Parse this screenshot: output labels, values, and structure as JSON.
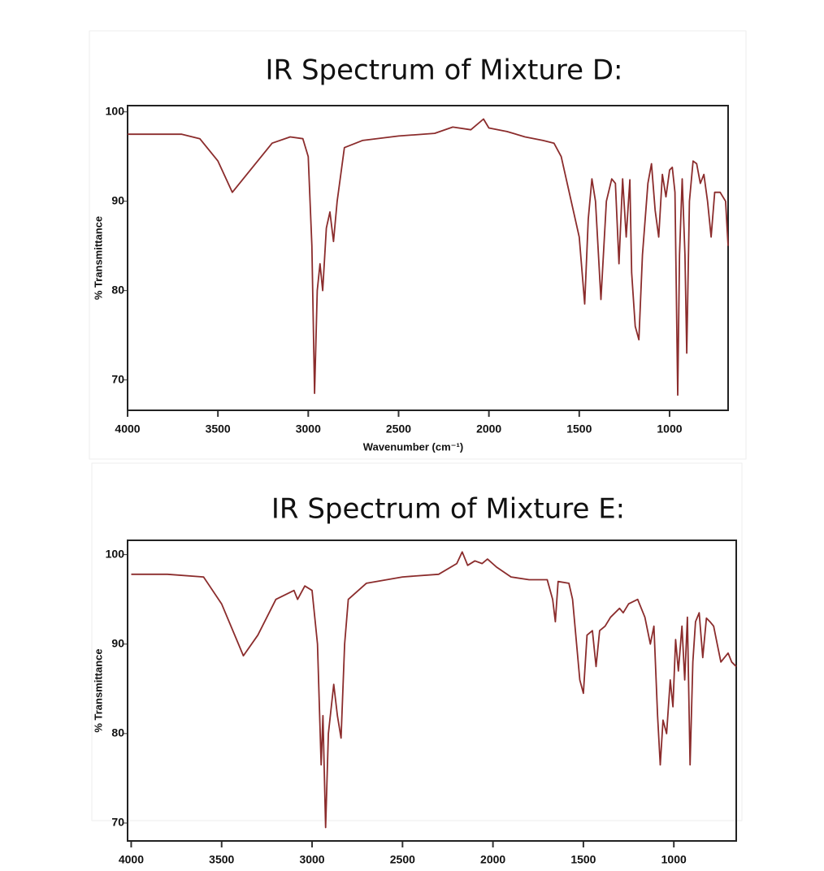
{
  "chart_data": [
    {
      "type": "line",
      "title": "IR Spectrum of Mixture D:",
      "xlabel": "Wavenumber (cm⁻¹)",
      "ylabel": "% Transmittance",
      "color": "#8b2c2c",
      "xlim": [
        4000,
        676
      ],
      "ylim": [
        66.6,
        100.7
      ],
      "xticks": [
        4000,
        3500,
        3000,
        2500,
        2000,
        1500,
        1000
      ],
      "yticks": [
        70,
        80,
        90,
        100
      ],
      "x": [
        4000,
        3700,
        3600,
        3500,
        3420,
        3300,
        3200,
        3100,
        3030,
        3000,
        2980,
        2965,
        2950,
        2935,
        2920,
        2900,
        2880,
        2860,
        2840,
        2800,
        2700,
        2500,
        2300,
        2200,
        2100,
        2030,
        2000,
        1900,
        1800,
        1700,
        1640,
        1600,
        1500,
        1470,
        1450,
        1430,
        1410,
        1380,
        1350,
        1320,
        1300,
        1280,
        1260,
        1240,
        1220,
        1210,
        1190,
        1170,
        1150,
        1120,
        1100,
        1080,
        1060,
        1040,
        1020,
        1000,
        985,
        970,
        955,
        945,
        930,
        915,
        905,
        890,
        870,
        850,
        830,
        810,
        790,
        770,
        750,
        720,
        690,
        676
      ],
      "values": [
        97.5,
        97.5,
        97,
        94.5,
        91,
        94,
        96.5,
        97.2,
        97,
        95,
        85,
        68.5,
        80,
        83,
        80,
        87,
        88.8,
        85.5,
        90,
        96,
        96.8,
        97.3,
        97.6,
        98.3,
        98,
        99.2,
        98.2,
        97.8,
        97.2,
        96.8,
        96.5,
        95,
        86,
        78.5,
        88,
        92.5,
        90,
        79,
        90,
        92.5,
        92,
        83,
        92.5,
        86,
        92.4,
        82,
        76,
        74.5,
        84,
        92,
        94.2,
        89,
        86,
        93,
        90.5,
        93.5,
        93.8,
        91,
        68.3,
        84,
        92.5,
        84,
        73,
        90,
        94.5,
        94.2,
        92,
        93,
        90,
        86,
        91,
        91,
        90,
        85
      ]
    },
    {
      "type": "line",
      "title": "IR Spectrum of Mixture E:",
      "ylabel": "% Transmittance",
      "color": "#8b2c2c",
      "xlim": [
        4020,
        655
      ],
      "ylim": [
        68,
        101.6
      ],
      "xticks": [
        4000,
        3500,
        3000,
        2500,
        2000,
        1500,
        1000
      ],
      "yticks": [
        70,
        80,
        90,
        100
      ],
      "x": [
        4000,
        3800,
        3600,
        3500,
        3380,
        3300,
        3200,
        3100,
        3080,
        3040,
        3000,
        2970,
        2950,
        2940,
        2925,
        2910,
        2880,
        2860,
        2840,
        2820,
        2800,
        2700,
        2500,
        2300,
        2200,
        2170,
        2140,
        2100,
        2060,
        2030,
        1980,
        1900,
        1800,
        1700,
        1670,
        1655,
        1640,
        1580,
        1560,
        1520,
        1500,
        1480,
        1450,
        1430,
        1410,
        1380,
        1350,
        1300,
        1280,
        1250,
        1200,
        1160,
        1130,
        1110,
        1090,
        1075,
        1060,
        1040,
        1020,
        1005,
        990,
        975,
        955,
        940,
        925,
        910,
        895,
        880,
        860,
        840,
        820,
        800,
        780,
        760,
        740,
        720,
        700,
        680,
        655
      ],
      "values": [
        97.8,
        97.8,
        97.5,
        94.5,
        88.7,
        91,
        95,
        96,
        95,
        96.5,
        96,
        90,
        76.5,
        82,
        69.5,
        80,
        85.5,
        82,
        79.5,
        90,
        95,
        96.8,
        97.5,
        97.8,
        99,
        100.3,
        98.8,
        99.3,
        99,
        99.5,
        98.6,
        97.5,
        97.2,
        97.2,
        95,
        92.5,
        97,
        96.8,
        95,
        86,
        84.5,
        91,
        91.5,
        87.5,
        91.5,
        92,
        93,
        94,
        93.5,
        94.5,
        95,
        93,
        90,
        92,
        82,
        76.5,
        81.5,
        80,
        86,
        83,
        90.5,
        87,
        92,
        86,
        93,
        76.5,
        88,
        92.5,
        93.5,
        88.5,
        92.9,
        92.5,
        92,
        90,
        88,
        88.5,
        89,
        88,
        87.5
      ]
    }
  ]
}
